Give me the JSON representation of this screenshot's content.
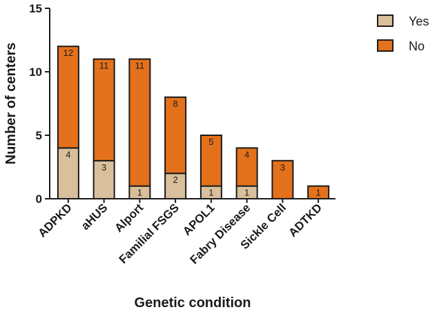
{
  "chart_data": {
    "type": "bar",
    "stacked": true,
    "title": "",
    "xlabel": "Genetic condition",
    "ylabel": "Number of centers",
    "ylim": [
      0,
      15
    ],
    "yticks": [
      0,
      5,
      10,
      15
    ],
    "categories": [
      "ADPKD",
      "aHUS",
      "Alport",
      "Familial FSGS",
      "APOL1",
      "Fabry Disease",
      "Sickle Cell",
      "ADTKD"
    ],
    "series": [
      {
        "name": "Yes",
        "values": [
          4,
          3,
          1,
          2,
          1,
          1,
          0,
          0
        ],
        "labels": [
          "4",
          "3",
          "1",
          "2",
          "1",
          "1",
          "",
          ""
        ],
        "color": "#d9bf9c"
      },
      {
        "name": "No",
        "values": [
          8,
          8,
          10,
          6,
          4,
          3,
          3,
          1
        ],
        "labels": [
          "12",
          "11",
          "11",
          "8",
          "5",
          "4",
          "3",
          "1"
        ],
        "color": "#e4711b"
      }
    ],
    "legend": {
      "position": "top-right",
      "entries": [
        "Yes",
        "No"
      ]
    }
  }
}
